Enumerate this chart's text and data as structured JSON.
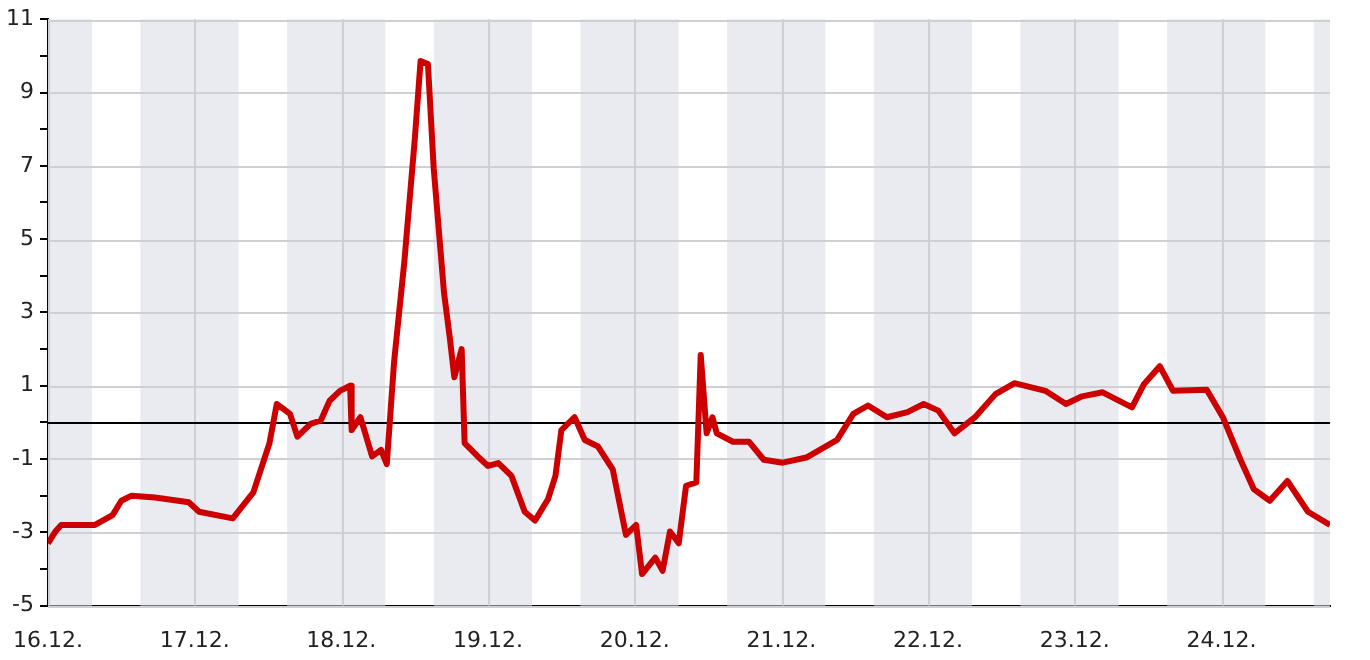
{
  "chart_data": {
    "type": "line",
    "x": [
      "--12-16T00:00",
      "--12-16T01:12",
      "--12-16T02:10",
      "--12-16T07:41",
      "--12-16T10:34",
      "--12-16T12:00",
      "--12-16T13:41",
      "--12-16T17:31",
      "--12-16T23:02",
      "--12-17T00:43",
      "--12-17T06:14",
      "--12-17T09:36",
      "--12-17T12:14",
      "--12-17T13:26",
      "--12-17T15:36",
      "--12-17T16:48",
      "--12-17T18:58",
      "--12-17T20:38",
      "--12-17T22:05",
      "--12-17T23:46",
      "--12-18T01:26",
      "--12-18T01:41",
      "--12-18T03:07",
      "--12-18T05:02",
      "--12-18T06:29",
      "--12-18T07:26",
      "--12-18T08:38",
      "--12-18T10:19",
      "--12-18T12:00",
      "--12-18T12:58",
      "--12-18T14:10",
      "--12-18T15:07",
      "--12-18T16:48",
      "--12-18T17:46",
      "--12-18T18:29",
      "--12-18T19:41",
      "--12-18T20:10",
      "--12-18T22:19",
      "--12-19T00:00",
      "--12-19T01:41",
      "--12-19T03:50",
      "--12-19T06:00",
      "--12-19T07:41",
      "--12-19T09:50",
      "--12-19T11:02",
      "--12-19T12:00",
      "--12-19T14:10",
      "--12-19T15:50",
      "--12-19T18:00",
      "--12-19T20:24",
      "--12-19T22:34",
      "--12-20T00:14",
      "--12-20T01:12",
      "--12-20T03:22",
      "--12-20T04:34",
      "--12-20T05:46",
      "--12-20T07:12",
      "--12-20T08:24",
      "--12-20T10:05",
      "--12-20T10:48",
      "--12-20T11:46",
      "--12-20T12:43",
      "--12-20T13:26",
      "--12-20T16:05",
      "--12-20T18:43",
      "--12-20T21:07",
      "--12-21T00:14",
      "--12-21T04:05",
      "--12-21T09:07",
      "--12-21T11:46",
      "--12-21T14:10",
      "--12-21T17:17",
      "--12-21T20:38",
      "--12-21T23:17",
      "--12-22T01:41",
      "--12-22T04:19",
      "--12-22T07:41",
      "--12-22T11:02",
      "--12-22T14:10",
      "--12-22T19:12",
      "--12-22T22:34",
      "--12-23T01:12",
      "--12-23T04:34",
      "--12-23T09:22",
      "--12-23T11:17",
      "--12-23T13:55",
      "--12-23T16:05",
      "--12-23T21:36",
      "--12-24T00:14",
      "--12-24T03:07",
      "--12-24T05:17",
      "--12-24T07:55",
      "--12-24T10:48",
      "--12-24T14:10",
      "--12-24T17:46"
    ],
    "series": [
      {
        "color": "#cc0000",
        "values": [
          -3.3,
          -2.98,
          -2.8,
          -2.8,
          -2.53,
          -2.14,
          -2.0,
          -2.05,
          -2.18,
          -2.44,
          -2.62,
          -1.91,
          -0.57,
          0.5,
          0.23,
          -0.39,
          -0.04,
          0.05,
          0.59,
          0.86,
          1.0,
          -0.21,
          0.14,
          -0.93,
          -0.75,
          -1.14,
          1.66,
          4.4,
          7.7,
          9.86,
          9.78,
          6.92,
          3.53,
          2.28,
          1.23,
          2.0,
          -0.57,
          -0.93,
          -1.19,
          -1.11,
          -1.46,
          -2.44,
          -2.68,
          -2.09,
          -1.46,
          -0.21,
          0.14,
          -0.48,
          -0.66,
          -1.28,
          -3.07,
          -2.8,
          -4.14,
          -3.69,
          -4.05,
          -2.98,
          -3.3,
          -1.73,
          -1.64,
          1.84,
          -0.3,
          0.14,
          -0.3,
          -0.53,
          -0.53,
          -1.02,
          -1.1,
          -0.96,
          -0.48,
          0.23,
          0.46,
          0.14,
          0.28,
          0.5,
          0.32,
          -0.3,
          0.14,
          0.77,
          1.07,
          0.86,
          0.5,
          0.71,
          0.82,
          0.41,
          1.03,
          1.53,
          0.86,
          0.89,
          0.14,
          -1.02,
          -1.82,
          -2.14,
          -1.6,
          -2.44,
          -2.8
        ]
      }
    ],
    "xlim": [
      "--12-16T00:00",
      "--12-24T17:46"
    ],
    "xticks": [
      {
        "value": "--12-16",
        "label": "16.12."
      },
      {
        "value": "--12-17",
        "label": "17.12."
      },
      {
        "value": "--12-18",
        "label": "18.12."
      },
      {
        "value": "--12-19",
        "label": "19.12."
      },
      {
        "value": "--12-20",
        "label": "20.12."
      },
      {
        "value": "--12-21",
        "label": "21.12."
      },
      {
        "value": "--12-22",
        "label": "22.12."
      },
      {
        "value": "--12-23",
        "label": "23.12."
      },
      {
        "value": "--12-24",
        "label": "24.12."
      }
    ],
    "ylim": [
      -5,
      11
    ],
    "yticks": [
      -5,
      {
        "value": -4,
        "label": null
      },
      -3,
      {
        "value": -2,
        "label": null
      },
      -1,
      {
        "value": 0,
        "label": null
      },
      1,
      {
        "value": 2,
        "label": null
      },
      3,
      {
        "value": 4,
        "label": null
      },
      5,
      {
        "value": 6,
        "label": null
      },
      7,
      {
        "value": 8,
        "label": null
      },
      9,
      {
        "value": 10,
        "label": null
      },
      11
    ],
    "grid": true,
    "legend": false,
    "marker": "none",
    "line_style": "solid",
    "ref_lines": [
      {
        "axis": "y",
        "value": 0,
        "color": "#000000"
      }
    ],
    "bands": [
      {
        "axis": "x",
        "from": "--12-16T00:00",
        "to": "--12-16T07:12",
        "color": "#eaebf1"
      },
      {
        "axis": "x",
        "from": "--12-16T15:07",
        "to": "--12-17T07:12",
        "color": "#eaebf1"
      },
      {
        "axis": "x",
        "from": "--12-17T15:07",
        "to": "--12-18T07:12",
        "color": "#eaebf1"
      },
      {
        "axis": "x",
        "from": "--12-18T15:07",
        "to": "--12-19T07:12",
        "color": "#eaebf1"
      },
      {
        "axis": "x",
        "from": "--12-19T15:07",
        "to": "--12-20T07:12",
        "color": "#eaebf1"
      },
      {
        "axis": "x",
        "from": "--12-20T15:07",
        "to": "--12-21T07:12",
        "color": "#eaebf1"
      },
      {
        "axis": "x",
        "from": "--12-21T15:07",
        "to": "--12-22T07:12",
        "color": "#eaebf1"
      },
      {
        "axis": "x",
        "from": "--12-22T15:07",
        "to": "--12-23T07:12",
        "color": "#eaebf1"
      },
      {
        "axis": "x",
        "from": "--12-23T15:07",
        "to": "--12-24T07:12",
        "color": "#eaebf1"
      },
      {
        "axis": "x",
        "from": "--12-24T15:07",
        "to": "--12-24T17:46",
        "color": "#eaebf1"
      }
    ]
  }
}
